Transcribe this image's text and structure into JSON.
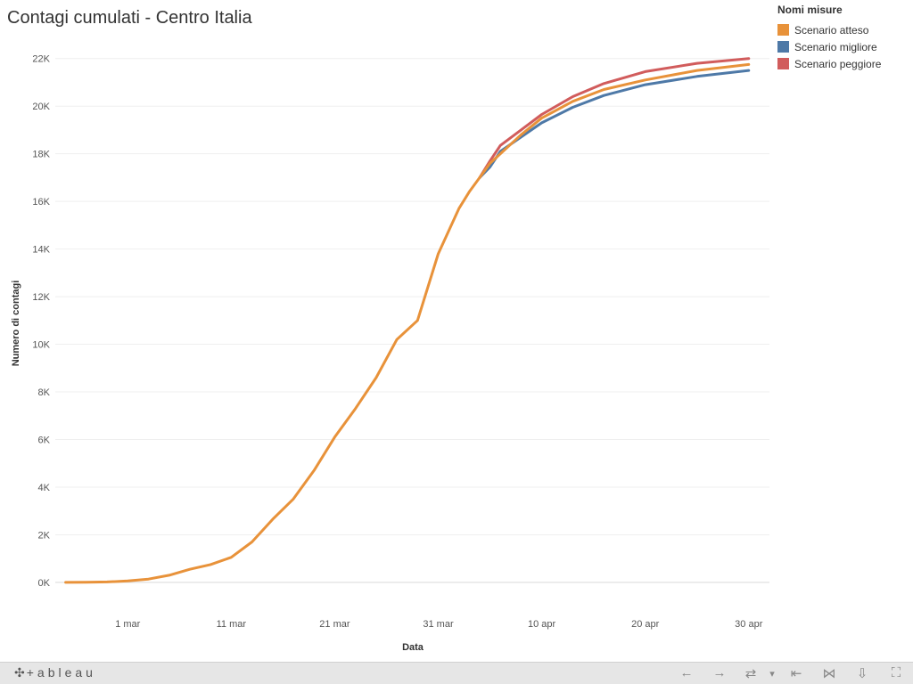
{
  "title": "Contagi cumulati - Centro Italia",
  "legend": {
    "title": "Nomi misure",
    "items": [
      {
        "label": "Scenario atteso",
        "color": "#e8923a"
      },
      {
        "label": "Scenario migliore",
        "color": "#4e79a7"
      },
      {
        "label": "Scenario peggiore",
        "color": "#d15c5c"
      }
    ]
  },
  "chart_data": {
    "type": "line",
    "xlabel": "Data",
    "ylabel": "Numero di contagi",
    "x_unit": "day",
    "x_ticks": [
      {
        "label": "1 mar",
        "date": "2020-03-01"
      },
      {
        "label": "11 mar",
        "date": "2020-03-11"
      },
      {
        "label": "21 mar",
        "date": "2020-03-21"
      },
      {
        "label": "31 mar",
        "date": "2020-03-31"
      },
      {
        "label": "10 apr",
        "date": "2020-04-10"
      },
      {
        "label": "20 apr",
        "date": "2020-04-20"
      },
      {
        "label": "30 apr",
        "date": "2020-04-30"
      }
    ],
    "y_ticks": [
      {
        "label": "0K",
        "value": 0
      },
      {
        "label": "2K",
        "value": 2000
      },
      {
        "label": "4K",
        "value": 4000
      },
      {
        "label": "6K",
        "value": 6000
      },
      {
        "label": "8K",
        "value": 8000
      },
      {
        "label": "10K",
        "value": 10000
      },
      {
        "label": "12K",
        "value": 12000
      },
      {
        "label": "14K",
        "value": 14000
      },
      {
        "label": "16K",
        "value": 16000
      },
      {
        "label": "18K",
        "value": 18000
      },
      {
        "label": "20K",
        "value": 20000
      },
      {
        "label": "22K",
        "value": 22000
      }
    ],
    "xlim": [
      "2020-02-23",
      "2020-05-02"
    ],
    "ylim": [
      -1200,
      22700
    ],
    "grid": true,
    "legend_position": "top-right",
    "series": [
      {
        "name": "Scenario atteso",
        "color": "#e8923a",
        "x": [
          "2020-02-24",
          "2020-02-26",
          "2020-02-28",
          "2020-03-01",
          "2020-03-03",
          "2020-03-05",
          "2020-03-07",
          "2020-03-09",
          "2020-03-11",
          "2020-03-13",
          "2020-03-15",
          "2020-03-17",
          "2020-03-19",
          "2020-03-21",
          "2020-03-23",
          "2020-03-25",
          "2020-03-27",
          "2020-03-29",
          "2020-03-31",
          "2020-04-02",
          "2020-04-03",
          "2020-04-04",
          "2020-04-05",
          "2020-04-08",
          "2020-04-10",
          "2020-04-13",
          "2020-04-16",
          "2020-04-20",
          "2020-04-25",
          "2020-04-30"
        ],
        "y": [
          0,
          5,
          20,
          60,
          140,
          300,
          550,
          750,
          1050,
          1700,
          2650,
          3500,
          4700,
          6100,
          7300,
          8600,
          10200,
          11000,
          13800,
          15700,
          16400,
          17000,
          17600,
          18800,
          19500,
          20200,
          20700,
          21100,
          21500,
          21750
        ]
      },
      {
        "name": "Scenario migliore",
        "color": "#4e79a7",
        "x": [
          "2020-04-04",
          "2020-04-05",
          "2020-04-06",
          "2020-04-08",
          "2020-04-10",
          "2020-04-13",
          "2020-04-16",
          "2020-04-20",
          "2020-04-25",
          "2020-04-30"
        ],
        "y": [
          17000,
          17450,
          18100,
          18700,
          19300,
          19950,
          20450,
          20900,
          21250,
          21500
        ]
      },
      {
        "name": "Scenario peggiore",
        "color": "#d15c5c",
        "x": [
          "2020-04-04",
          "2020-04-05",
          "2020-04-06",
          "2020-04-08",
          "2020-04-10",
          "2020-04-13",
          "2020-04-16",
          "2020-04-20",
          "2020-04-25",
          "2020-04-30"
        ],
        "y": [
          17000,
          17700,
          18350,
          19000,
          19650,
          20400,
          20950,
          21450,
          21800,
          22000
        ]
      }
    ]
  },
  "toolbar": {
    "brand": "+ableau",
    "buttons": [
      {
        "name": "undo-icon",
        "glyph": "←"
      },
      {
        "name": "redo-icon",
        "glyph": "→"
      },
      {
        "name": "revert-icon",
        "glyph": "⇄"
      },
      {
        "name": "revert-dropdown-icon",
        "glyph": "▾"
      },
      {
        "name": "reset-icon",
        "glyph": "⇤"
      },
      {
        "name": "share-icon",
        "glyph": "⋈"
      },
      {
        "name": "download-icon",
        "glyph": "⇩"
      },
      {
        "name": "fullscreen-icon",
        "glyph": "⛶"
      }
    ]
  }
}
